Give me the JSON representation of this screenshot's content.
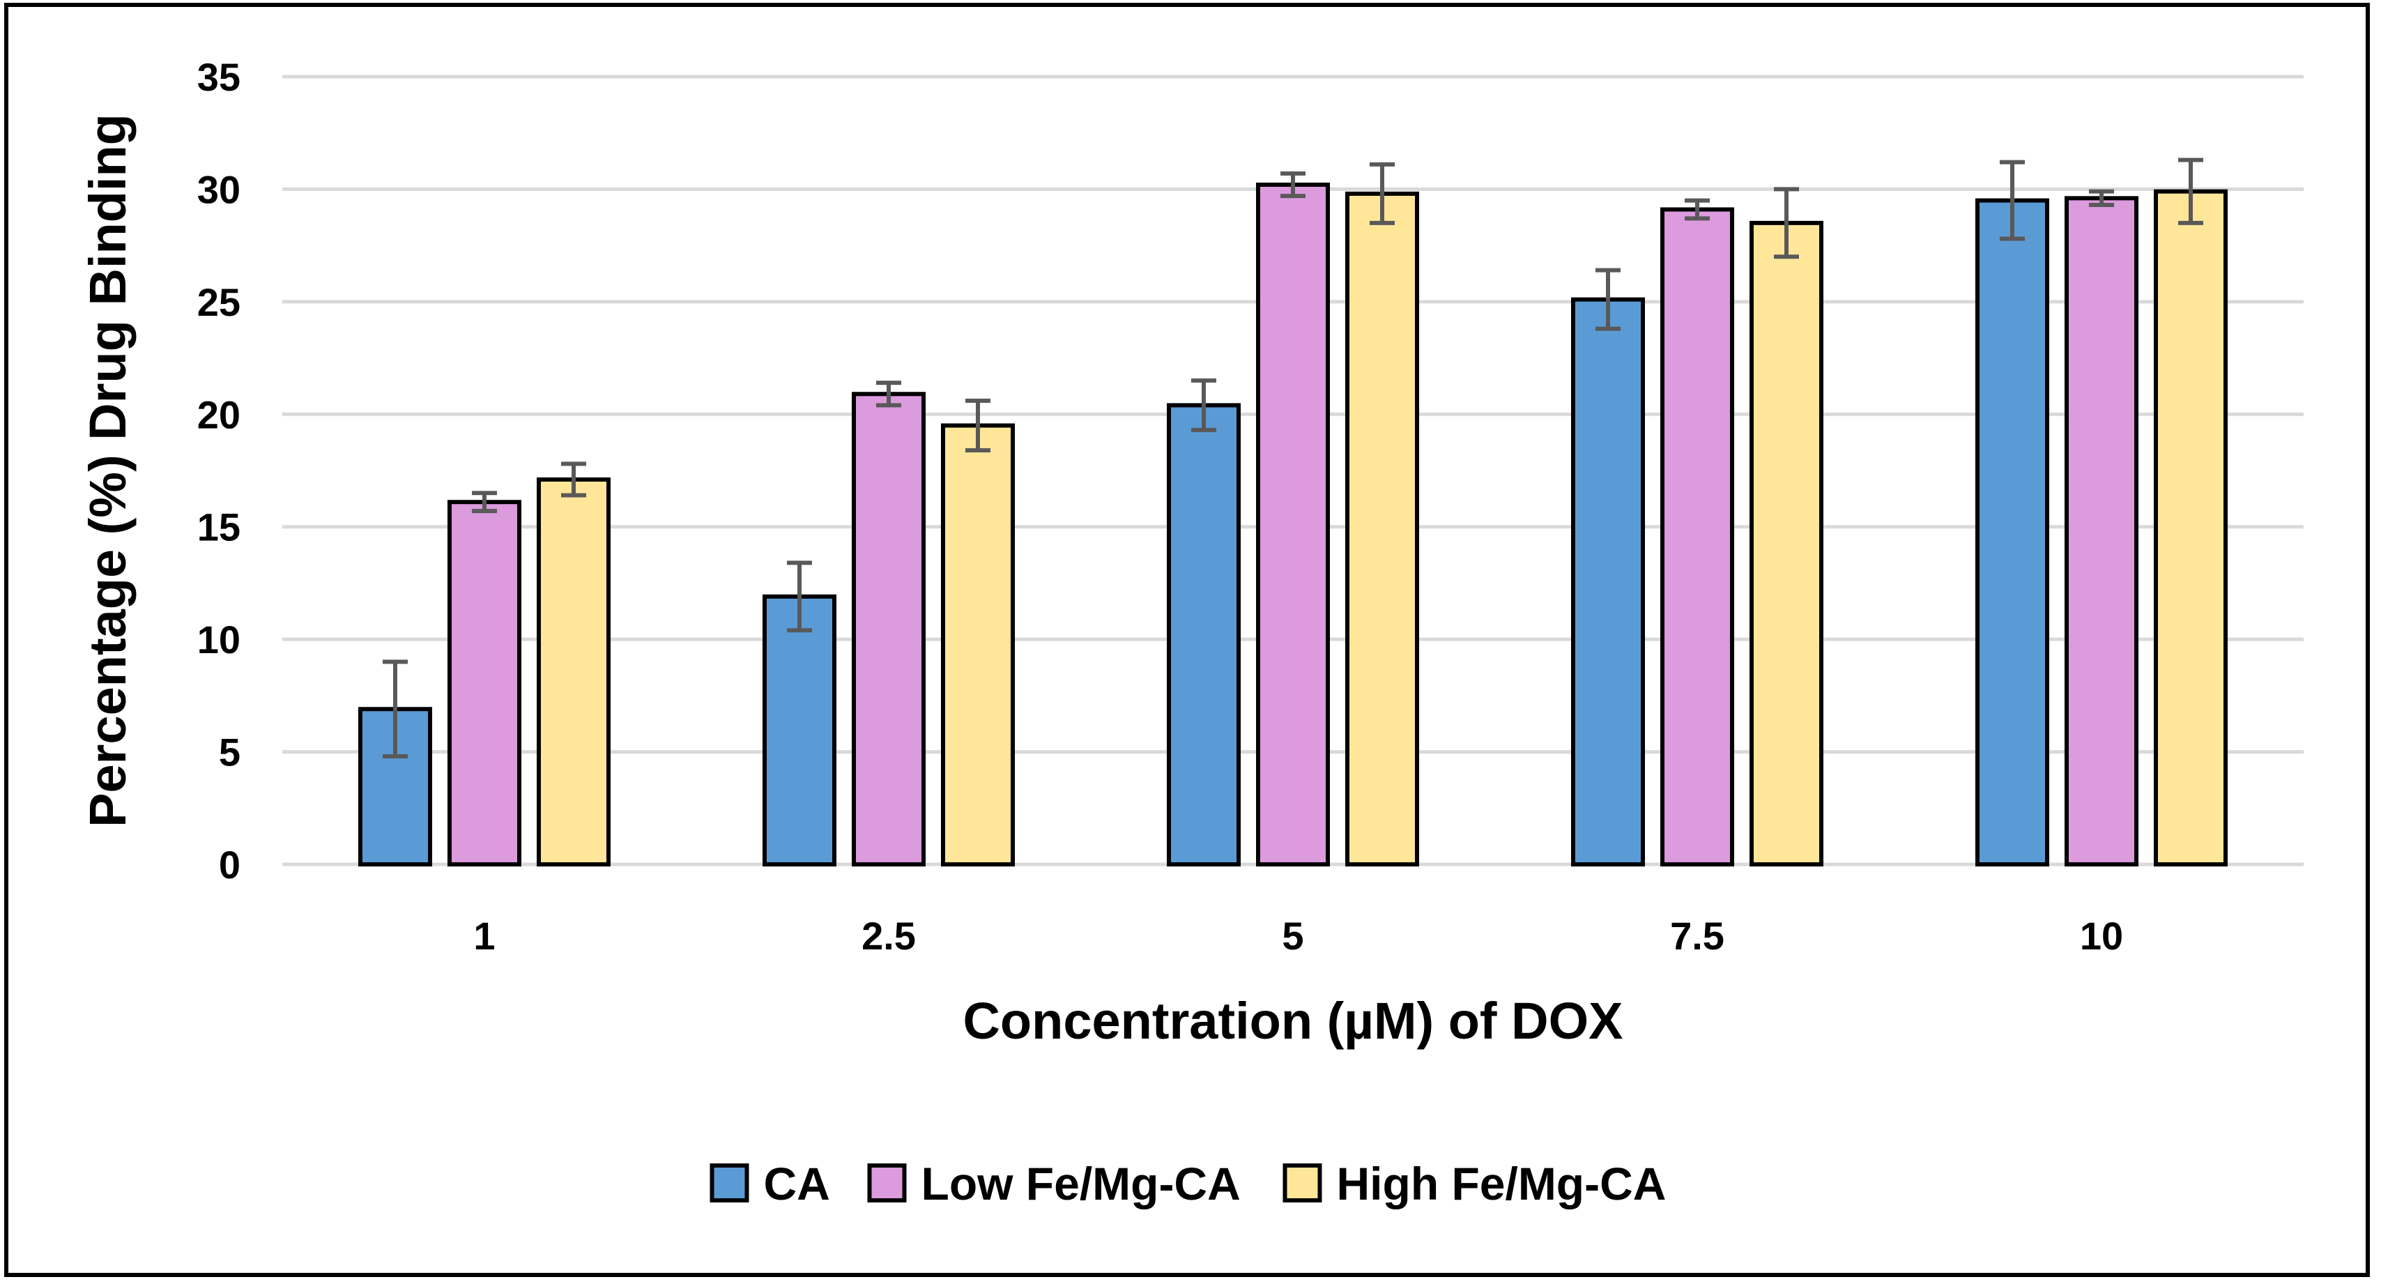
{
  "chart_data": {
    "type": "bar",
    "title": "",
    "xlabel": "Concentration (µM) of DOX",
    "ylabel": "Percentage (%) Drug Binding",
    "categories": [
      "1",
      "2.5",
      "5",
      "7.5",
      "10"
    ],
    "ylim": [
      0,
      35
    ],
    "yticks": [
      0,
      5,
      10,
      15,
      20,
      25,
      30,
      35
    ],
    "grid": true,
    "legend_position": "bottom",
    "series": [
      {
        "name": "CA",
        "color": "#5B9BD5",
        "values": [
          6.9,
          11.9,
          20.4,
          25.1,
          29.5
        ],
        "errors": [
          2.1,
          1.5,
          1.1,
          1.3,
          1.7
        ]
      },
      {
        "name": "Low Fe/Mg-CA",
        "color": "#DB9BDD",
        "values": [
          16.1,
          20.9,
          30.2,
          29.1,
          29.6
        ],
        "errors": [
          0.4,
          0.5,
          0.5,
          0.4,
          0.3
        ]
      },
      {
        "name": "High Fe/Mg-CA",
        "color": "#FFE699",
        "values": [
          17.1,
          19.5,
          29.8,
          28.5,
          29.9
        ],
        "errors": [
          0.7,
          1.1,
          1.3,
          1.5,
          1.4
        ]
      }
    ],
    "bar_outline_color": "#000000",
    "error_bar_color": "#595959",
    "grid_color": "#D9D9D9"
  }
}
